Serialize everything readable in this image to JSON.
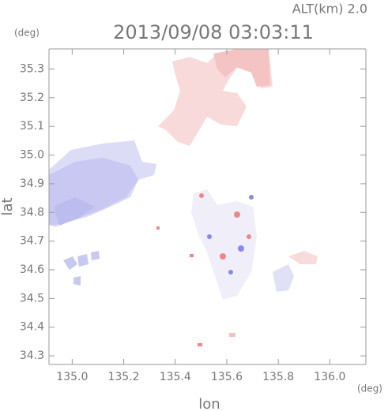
{
  "chart_data": {
    "type": "map",
    "title": "2013/09/08 03:03:11",
    "subtitle": "ALT(km)  2.0",
    "x_label": "lon",
    "y_label": "lat",
    "x_unit": "(deg)",
    "y_unit": "(deg)",
    "xlim": [
      134.91,
      136.14
    ],
    "ylim": [
      34.27,
      35.37
    ],
    "xticks": [
      {
        "value": 135,
        "label": "135.0"
      },
      {
        "value": 135.2,
        "label": "135.2"
      },
      {
        "value": 135.4,
        "label": "135.4"
      },
      {
        "value": 135.6,
        "label": "135.6"
      },
      {
        "value": 135.8,
        "label": "135.8"
      },
      {
        "value": 136,
        "label": "136.0"
      }
    ],
    "yticks": [
      34.3,
      34.4,
      34.5,
      34.6,
      34.7,
      34.8,
      34.9,
      {
        "value": 35,
        "label": "35.0"
      },
      35.1,
      35.2,
      35.3
    ]
  }
}
